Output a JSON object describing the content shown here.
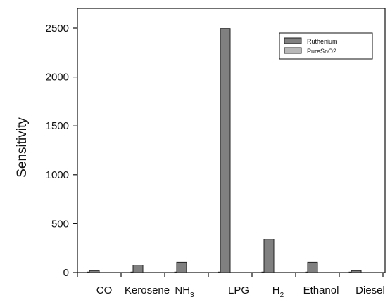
{
  "chart_data": {
    "type": "bar",
    "ylabel": "Sensitivity",
    "xlabel": "",
    "ylim": [
      0,
      2500
    ],
    "yticks": [
      0,
      500,
      1000,
      1500,
      2000,
      2500
    ],
    "categories": [
      {
        "main": "CO",
        "sub": ""
      },
      {
        "main": "Kerosene",
        "sub": ""
      },
      {
        "main": "NH",
        "sub": "3"
      },
      {
        "main": "LPG",
        "sub": ""
      },
      {
        "main": "H",
        "sub": "2"
      },
      {
        "main": "Ethanol",
        "sub": ""
      },
      {
        "main": "Diesel",
        "sub": ""
      }
    ],
    "series": [
      {
        "name": "Ruthenium",
        "color": "#808080",
        "values": [
          20,
          75,
          105,
          2495,
          340,
          105,
          20
        ]
      },
      {
        "name": "PureSnO2",
        "color": "#b8b8b8",
        "values": [
          5,
          5,
          5,
          5,
          5,
          5,
          5
        ]
      }
    ],
    "legend_position": "top-right",
    "grid": false
  }
}
